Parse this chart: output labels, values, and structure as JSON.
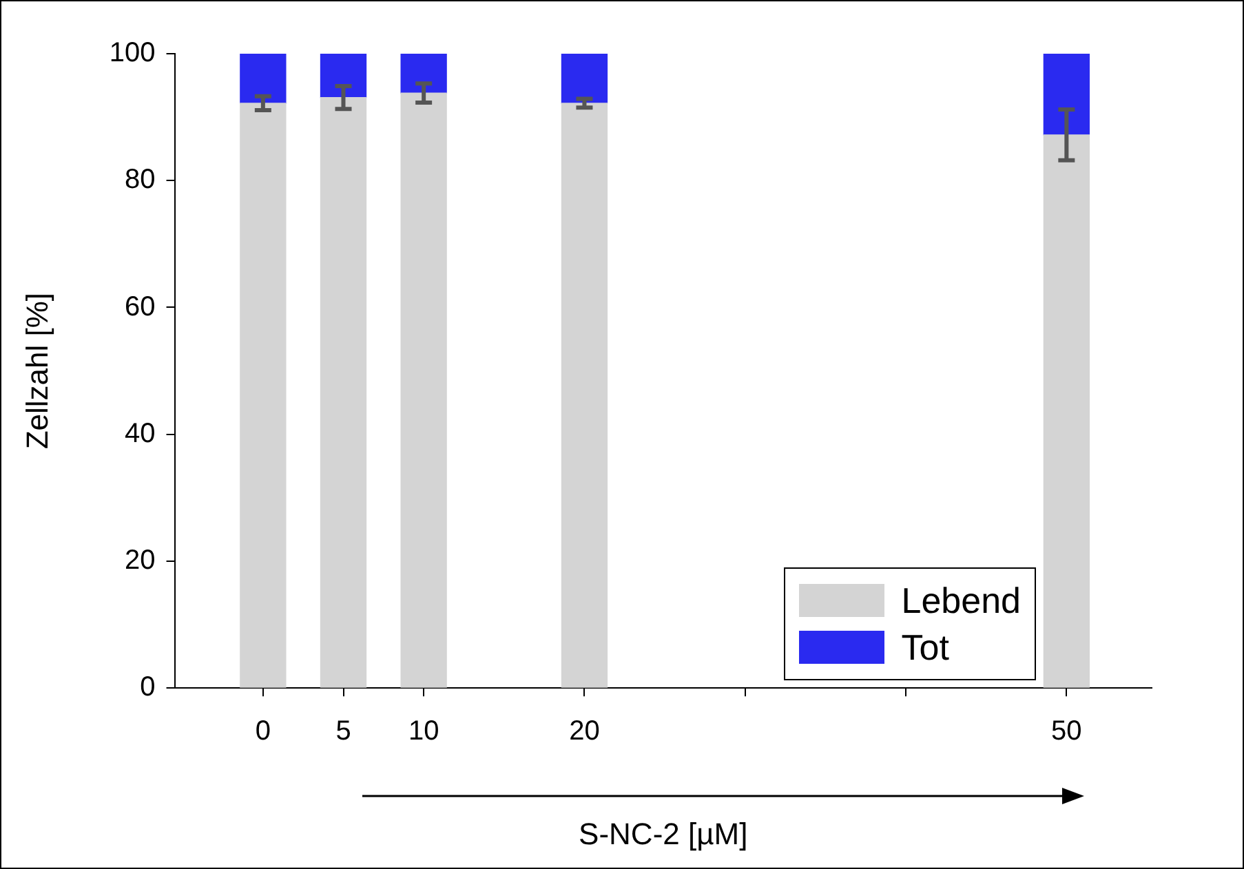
{
  "chart_data": {
    "type": "bar",
    "stacked": true,
    "xlabel": "S-NC-2 [µM]",
    "ylabel": "Zellzahl [%]",
    "x": [
      0,
      5,
      10,
      20,
      50
    ],
    "xlim": [
      -5.5,
      55.3
    ],
    "xticks": [
      0,
      5,
      10,
      20,
      {
        "value": 30,
        "label": null
      },
      {
        "value": 40,
        "label": null
      },
      50
    ],
    "ylim": [
      0,
      100
    ],
    "yticks": [
      0,
      20,
      40,
      60,
      80,
      100
    ],
    "series": [
      {
        "name": "Lebend",
        "color": "#d4d4d4",
        "values": [
          92.2,
          93.1,
          93.8,
          92.2,
          87.2
        ],
        "errors": [
          1.1,
          1.8,
          1.5,
          0.7,
          4
        ]
      },
      {
        "name": "Tot",
        "color": "#2a2af0",
        "values": [
          7.8,
          6.9,
          6.2,
          7.8,
          12.8
        ]
      }
    ],
    "grid": false,
    "legend": "bottom right"
  }
}
